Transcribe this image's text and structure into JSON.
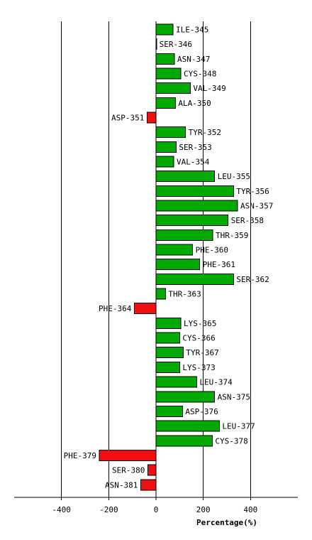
{
  "chart_data": {
    "type": "bar",
    "orientation": "horizontal",
    "categories": [
      "ILE-345",
      "SER-346",
      "ASN-347",
      "CYS-348",
      "VAL-349",
      "ALA-350",
      "ASP-351",
      "TYR-352",
      "SER-353",
      "VAL-354",
      "LEU-355",
      "TYR-356",
      "ASN-357",
      "SER-358",
      "THR-359",
      "PHE-360",
      "PHE-361",
      "SER-362",
      "THR-363",
      "PHE-364",
      "LYS-365",
      "CYS-366",
      "TYR-367",
      "LYS-373",
      "LEU-374",
      "ASN-375",
      "ASP-376",
      "LEU-377",
      "CYS-378",
      "PHE-379",
      "SER-380",
      "ASN-381"
    ],
    "values": [
      72,
      2,
      78,
      105,
      145,
      82,
      -38,
      125,
      85,
      75,
      248,
      328,
      345,
      305,
      240,
      155,
      185,
      328,
      40,
      -92,
      105,
      100,
      115,
      100,
      172,
      248,
      112,
      268,
      238,
      -240,
      -35,
      -65
    ],
    "xlim": [
      -600,
      600
    ],
    "xticks": [
      -400,
      -200,
      0,
      200,
      400
    ],
    "xtick_labels": [
      "-400",
      "-200",
      "0",
      "200",
      "400"
    ],
    "xlabel": "Percentage(%)",
    "ylabel": "",
    "title": "",
    "grid": "vertical",
    "colors": {
      "positive": "#00aa00",
      "negative": "#ee1111",
      "stroke": "#000000",
      "grid": "#000000"
    }
  }
}
